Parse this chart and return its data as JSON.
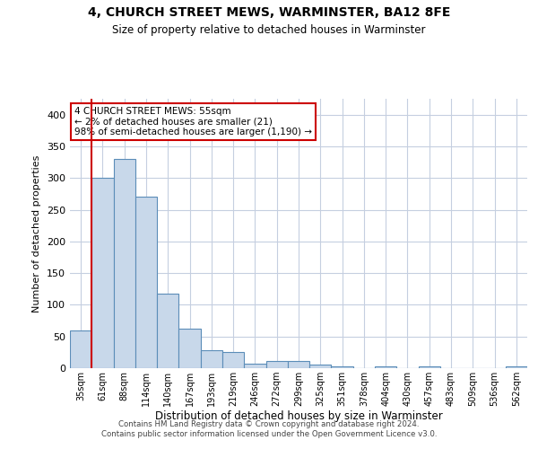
{
  "title1": "4, CHURCH STREET MEWS, WARMINSTER, BA12 8FE",
  "title2": "Size of property relative to detached houses in Warminster",
  "xlabel": "Distribution of detached houses by size in Warminster",
  "ylabel": "Number of detached properties",
  "categories": [
    "35sqm",
    "61sqm",
    "88sqm",
    "114sqm",
    "140sqm",
    "167sqm",
    "193sqm",
    "219sqm",
    "246sqm",
    "272sqm",
    "299sqm",
    "325sqm",
    "351sqm",
    "378sqm",
    "404sqm",
    "430sqm",
    "457sqm",
    "483sqm",
    "509sqm",
    "536sqm",
    "562sqm"
  ],
  "values": [
    60,
    300,
    330,
    270,
    118,
    63,
    29,
    25,
    7,
    11,
    11,
    5,
    3,
    0,
    3,
    0,
    3,
    0,
    0,
    0,
    3
  ],
  "bar_color": "#c8d8ea",
  "bar_edge_color": "#5b8db8",
  "background_color": "#ffffff",
  "grid_color": "#c5cfe0",
  "annotation_text": "4 CHURCH STREET MEWS: 55sqm\n← 2% of detached houses are smaller (21)\n98% of semi-detached houses are larger (1,190) →",
  "annotation_box_color": "#ffffff",
  "annotation_box_edge": "#cc0000",
  "vline_color": "#cc0000",
  "vline_x": 0.5,
  "ylim": [
    0,
    425
  ],
  "yticks": [
    0,
    50,
    100,
    150,
    200,
    250,
    300,
    350,
    400
  ],
  "footer1": "Contains HM Land Registry data © Crown copyright and database right 2024.",
  "footer2": "Contains public sector information licensed under the Open Government Licence v3.0."
}
